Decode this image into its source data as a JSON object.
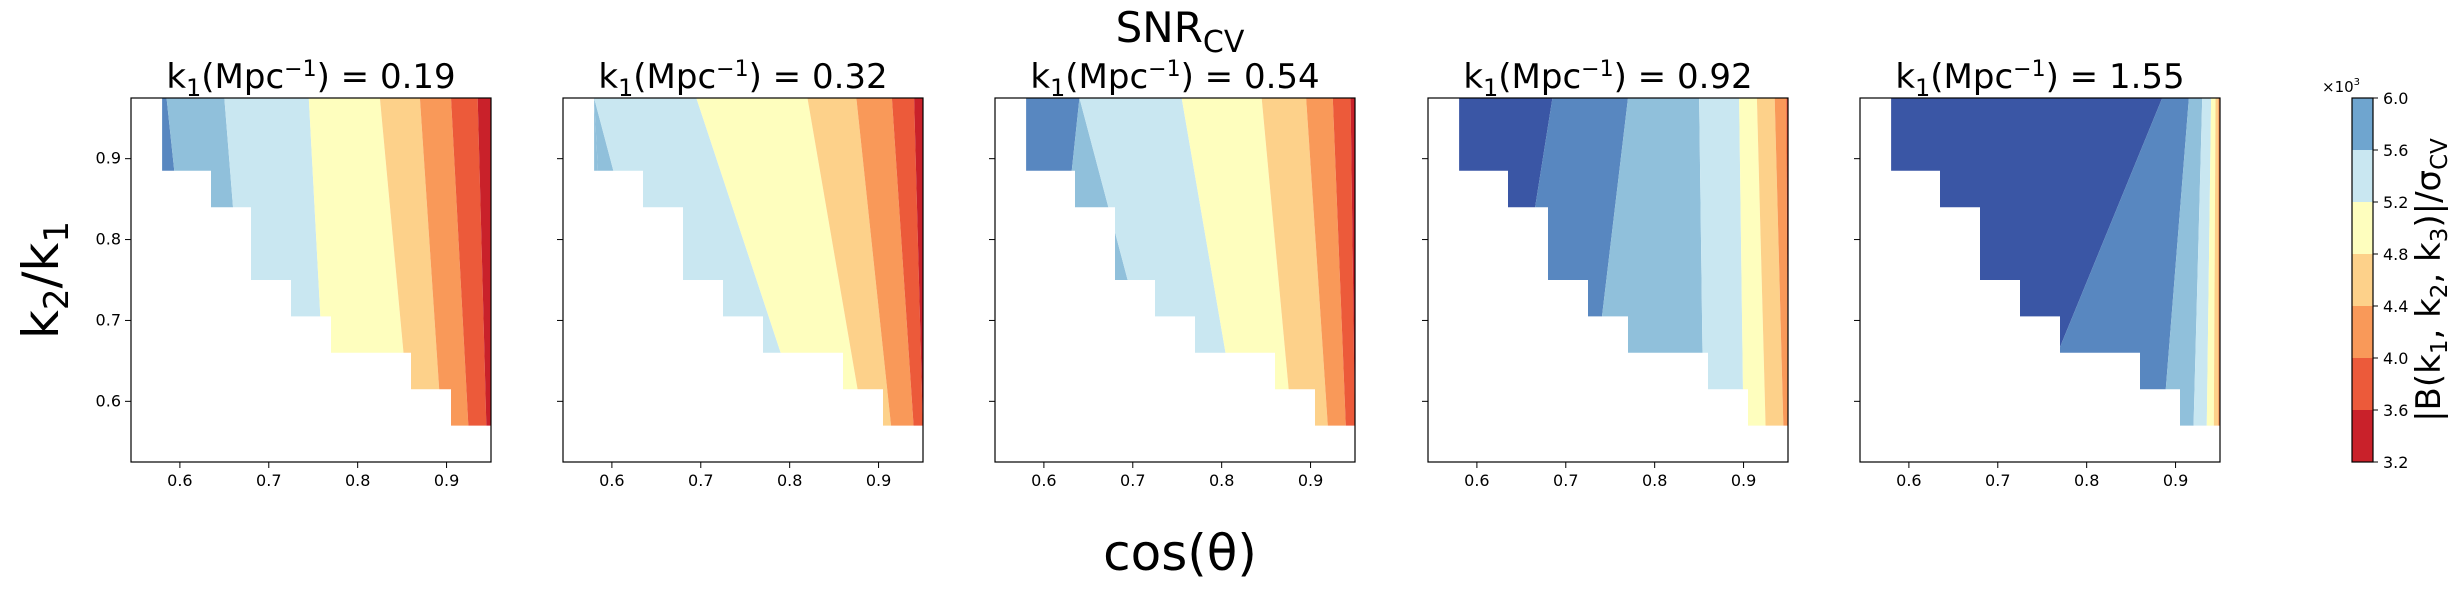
{
  "figure": {
    "suptitle": "SNR",
    "suptitle_sub": "CV",
    "xlabel": "cos(θ)",
    "ylabel_main": "k",
    "ylabel_sub1": "2",
    "ylabel_slash": "/k",
    "ylabel_sub2": "1"
  },
  "colorbar": {
    "label_prefix": "|B(k",
    "label_sub1": "1",
    "label_mid1": ", k",
    "label_sub2": "2",
    "label_mid2": ", k",
    "label_sub3": "3",
    "label_mid3": ")|/σ",
    "label_sub4": "CV",
    "multiplier_text": "×10",
    "multiplier_exp": "3",
    "ticks": [
      "3.2",
      "3.6",
      "4.0",
      "4.4",
      "4.8",
      "5.2",
      "5.6",
      "6.0"
    ],
    "levels": [
      3.2,
      3.6,
      4.0,
      4.4,
      4.8,
      5.2,
      5.6,
      6.0
    ],
    "colors": [
      "#c9212a",
      "#ec5a3a",
      "#f99959",
      "#fdd18a",
      "#fefebe",
      "#c9e7f1",
      "#90c0db",
      "#5887c0",
      "#3a56a5"
    ]
  },
  "chart_data": [
    {
      "type": "contourf",
      "title_prefix": "k",
      "title_sub": "1",
      "title_mid": "(Mpc",
      "title_sup": "−1",
      "title_suffix": ") = 0.19",
      "k1": 0.19,
      "xlim": [
        0.545,
        0.95
      ],
      "ylim": [
        0.525,
        0.975
      ],
      "xticks": [
        "0.6",
        "0.7",
        "0.8",
        "0.9"
      ],
      "yticks": [
        "0.6",
        "0.7",
        "0.8",
        "0.9"
      ],
      "show_yticklabels": true,
      "bands_top_x": [
        0.58,
        0.585,
        0.65,
        0.745,
        0.825,
        0.87,
        0.905,
        0.935
      ],
      "bands_bottom_x": [
        0.625,
        0.68,
        0.765,
        0.86,
        0.895,
        0.925,
        0.945
      ],
      "bands_level": [
        7,
        6,
        5,
        4,
        3,
        2,
        1,
        0
      ]
    },
    {
      "type": "contourf",
      "title_prefix": "k",
      "title_sub": "1",
      "title_mid": "(Mpc",
      "title_sup": "−1",
      "title_suffix": ") = 0.32",
      "k1": 0.32,
      "xlim": [
        0.545,
        0.95
      ],
      "ylim": [
        0.525,
        0.975
      ],
      "xticks": [
        "0.6",
        "0.7",
        "0.8",
        "0.9"
      ],
      "yticks": [
        "0.6",
        "0.7",
        "0.8",
        "0.9"
      ],
      "show_yticklabels": false,
      "bands_top_x": [
        0.58,
        0.58,
        0.58,
        0.695,
        0.82,
        0.875,
        0.915,
        0.94
      ],
      "bands_bottom_x": [
        0.6,
        0.68,
        0.82,
        0.885,
        0.915,
        0.94,
        0.95
      ],
      "bands_level": [
        6,
        6,
        5,
        4,
        3,
        2,
        1,
        0
      ]
    },
    {
      "type": "contourf",
      "title_prefix": "k",
      "title_sub": "1",
      "title_mid": "(Mpc",
      "title_sup": "−1",
      "title_suffix": ") = 0.54",
      "k1": 0.54,
      "xlim": [
        0.545,
        0.95
      ],
      "ylim": [
        0.525,
        0.975
      ],
      "xticks": [
        "0.6",
        "0.7",
        "0.8",
        "0.9"
      ],
      "yticks": [
        "0.6",
        "0.7",
        "0.8",
        "0.9"
      ],
      "show_yticklabels": false,
      "bands_top_x": [
        0.58,
        0.64,
        0.64,
        0.755,
        0.845,
        0.895,
        0.925,
        0.945
      ],
      "bands_bottom_x": [
        0.6,
        0.74,
        0.82,
        0.88,
        0.92,
        0.94,
        0.95
      ],
      "bands_level": [
        7,
        6,
        5,
        4,
        3,
        2,
        1,
        0
      ]
    },
    {
      "type": "contourf",
      "title_prefix": "k",
      "title_sub": "1",
      "title_mid": "(Mpc",
      "title_sup": "−1",
      "title_suffix": ") = 0.92",
      "k1": 0.92,
      "xlim": [
        0.545,
        0.95
      ],
      "ylim": [
        0.525,
        0.975
      ],
      "xticks": [
        "0.6",
        "0.7",
        "0.8",
        "0.9"
      ],
      "yticks": [
        "0.6",
        "0.7",
        "0.8",
        "0.9"
      ],
      "show_yticklabels": false,
      "bands_top_x": [
        0.58,
        0.685,
        0.77,
        0.85,
        0.895,
        0.915,
        0.935,
        0.948
      ],
      "bands_bottom_x": [
        0.625,
        0.725,
        0.855,
        0.9,
        0.925,
        0.945,
        0.95
      ],
      "bands_level": [
        8,
        7,
        6,
        5,
        4,
        3,
        2,
        1
      ]
    },
    {
      "type": "contourf",
      "title_prefix": "k",
      "title_sub": "1",
      "title_mid": "(Mpc",
      "title_sup": "−1",
      "title_suffix": ") = 1.55",
      "k1": 1.55,
      "xlim": [
        0.545,
        0.95
      ],
      "ylim": [
        0.525,
        0.975
      ],
      "xticks": [
        "0.6",
        "0.7",
        "0.8",
        "0.9"
      ],
      "yticks": [
        "0.6",
        "0.7",
        "0.8",
        "0.9"
      ],
      "show_yticklabels": false,
      "bands_top_x": [
        0.58,
        0.885,
        0.915,
        0.93,
        0.94,
        0.945,
        0.948,
        0.95
      ],
      "bands_bottom_x": [
        0.73,
        0.885,
        0.92,
        0.935,
        0.943,
        0.948,
        0.95
      ],
      "bands_level": [
        8,
        7,
        6,
        5,
        4,
        3,
        2,
        1
      ]
    }
  ]
}
